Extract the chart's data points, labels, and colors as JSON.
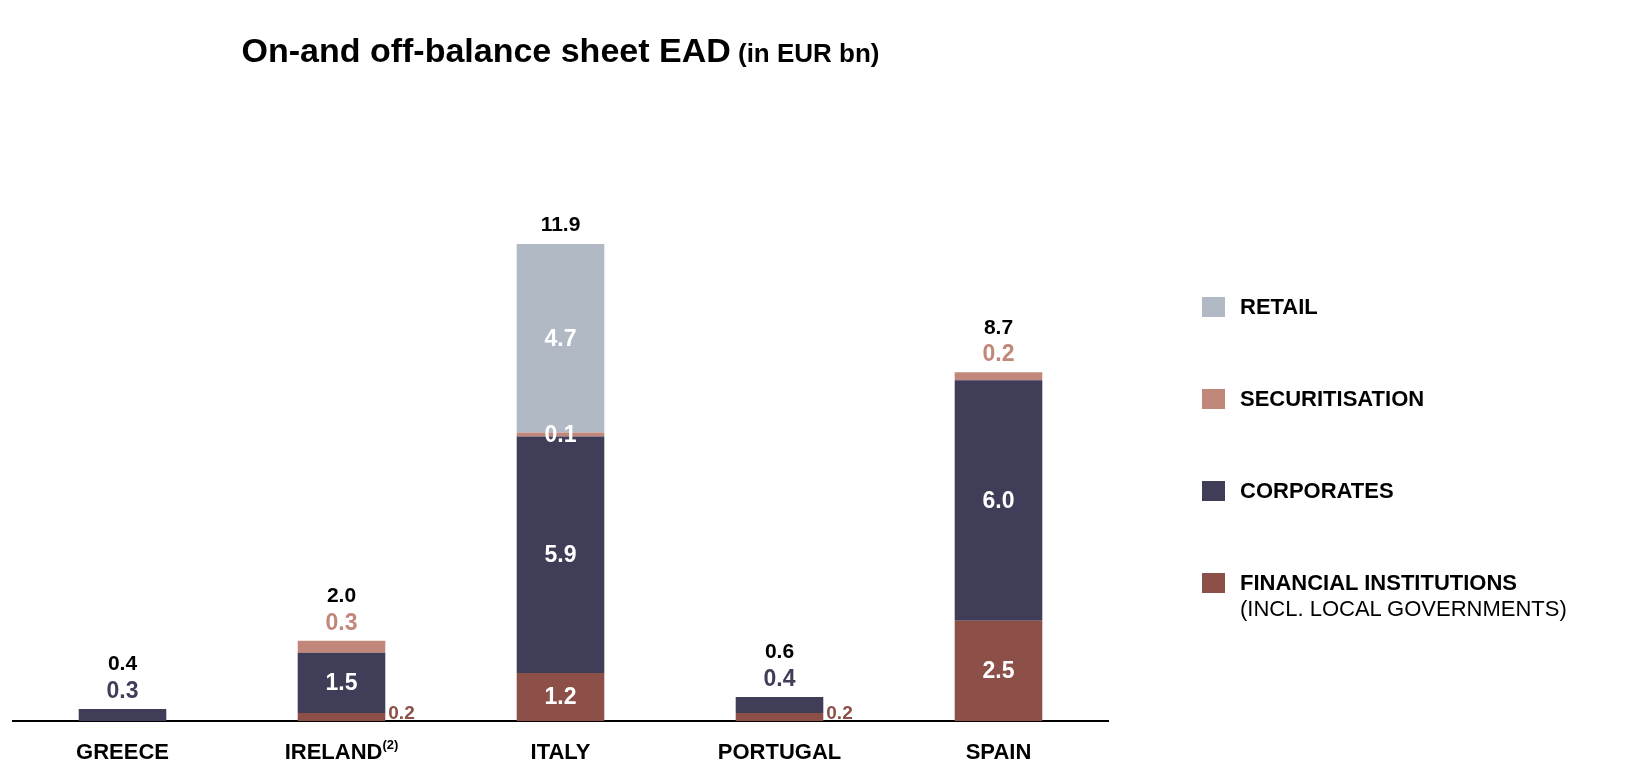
{
  "chart_data": {
    "type": "bar",
    "title": "On-and off-balance sheet EAD",
    "subtitle": "(in EUR bn)",
    "categories": [
      "GREECE",
      "IRELAND$^{(2)}$",
      "ITALY",
      "PORTUGAL",
      "SPAIN"
    ],
    "stacked": true,
    "tick_labels": "x",
    "legend": "right",
    "series": [
      {
        "name": "FINANCIAL INSTITUTIONS\n(INCL. LOCAL GOVERNMENTS)",
        "color": "#8c5048",
        "values": [
          null,
          0.2,
          1.2,
          0.2,
          2.5
        ],
        "value_labels": [
          null,
          "0.2",
          "1.2",
          "0.2",
          "2.5"
        ]
      },
      {
        "name": "CORPORATES",
        "color": "#403d58",
        "values": [
          0.3,
          1.5,
          5.9,
          0.4,
          6.0
        ],
        "value_labels": [
          "0.3",
          "1.5",
          "5.9",
          "0.4",
          "6.0"
        ]
      },
      {
        "name": "SECURITISATION",
        "color": "#c0877a",
        "values": [
          null,
          0.3,
          0.1,
          null,
          0.2
        ],
        "value_labels": [
          null,
          "0.3",
          "0.1",
          null,
          "0.2"
        ]
      },
      {
        "name": "RETAIL",
        "color": "#b1b9c4",
        "values": [
          null,
          null,
          4.7,
          null,
          null
        ],
        "value_labels": [
          null,
          null,
          "4.7",
          null,
          null
        ]
      }
    ],
    "totals": [
      "0.4",
      "2.0",
      "11.9",
      "0.6",
      "8.7"
    ]
  }
}
